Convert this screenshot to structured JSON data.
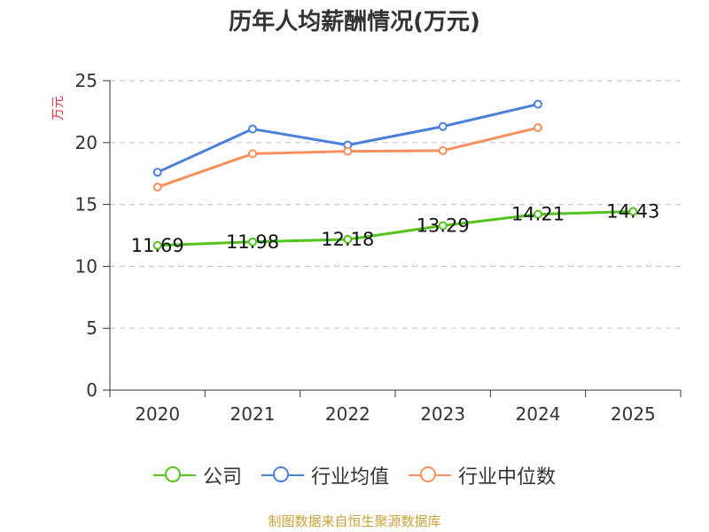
{
  "title": "历年人均薪酬情况(万元)",
  "footer": "制图数据来自恒生聚源数据库",
  "chart_data": {
    "type": "line",
    "title": "历年人均薪酬情况(万元)",
    "ylabel": "万元",
    "xlabel": "",
    "ylim": [
      0,
      25
    ],
    "yticks": [
      0,
      5,
      10,
      15,
      20,
      25
    ],
    "categories": [
      "2020",
      "2021",
      "2022",
      "2023",
      "2024",
      "2025"
    ],
    "grid": true,
    "legend_position": "bottom",
    "series": [
      {
        "name": "公司",
        "color": "#52c41a",
        "values": [
          11.69,
          11.98,
          12.18,
          13.29,
          14.21,
          14.43
        ],
        "labels": [
          "11.69",
          "11.98",
          "12.18",
          "13.29",
          "14.21",
          "14.43"
        ]
      },
      {
        "name": "行业均值",
        "color": "#4a7fdc",
        "values": [
          17.6,
          21.1,
          19.8,
          21.3,
          23.1,
          null
        ]
      },
      {
        "name": "行业中位数",
        "color": "#f7905a",
        "values": [
          16.4,
          19.1,
          19.3,
          19.35,
          21.2,
          null
        ]
      }
    ]
  }
}
